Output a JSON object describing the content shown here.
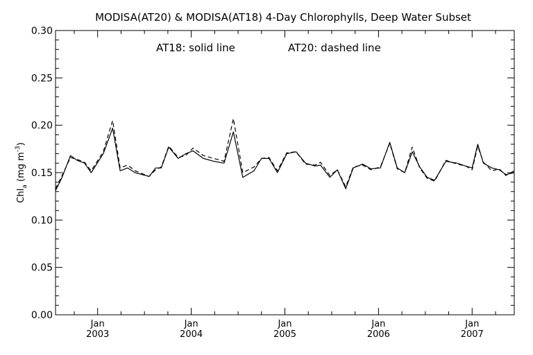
{
  "chart_data": {
    "type": "line",
    "title": "MODISA(AT20) & MODISA(AT18) 4-Day Chlorophylls, Deep Water Subset",
    "annotation": {
      "solid": "AT18: solid line",
      "dashed": "AT20: dashed line"
    },
    "ylabel": "Chl_a (mg m^-3)",
    "ylabel_parts": {
      "base": "Chl",
      "sub": "a",
      "units_open": " (mg m",
      "sup": "-3",
      "units_close": ")"
    },
    "xlabel": "",
    "ylim": [
      0.0,
      0.3
    ],
    "xlim": [
      2002.55,
      2007.45
    ],
    "yticks": [
      0.0,
      0.05,
      0.1,
      0.15,
      0.2,
      0.25,
      0.3
    ],
    "ytick_labels": [
      "0.00",
      "0.05",
      "0.10",
      "0.15",
      "0.20",
      "0.25",
      "0.30"
    ],
    "xticks": [
      {
        "x": 2003.0,
        "month": "Jan",
        "year": "2003"
      },
      {
        "x": 2004.0,
        "month": "Jan",
        "year": "2004"
      },
      {
        "x": 2005.0,
        "month": "Jan",
        "year": "2005"
      },
      {
        "x": 2006.0,
        "month": "Jan",
        "year": "2006"
      },
      {
        "x": 2007.0,
        "month": "Jan",
        "year": "2007"
      }
    ],
    "grid": false,
    "series": [
      {
        "name": "AT18",
        "style": "solid",
        "color": "#000000",
        "x": [
          2002.55,
          2002.62,
          2002.71,
          2002.78,
          2002.86,
          2002.93,
          2003.06,
          2003.16,
          2003.24,
          2003.32,
          2003.4,
          2003.55,
          2003.62,
          2003.68,
          2003.76,
          2003.86,
          2003.94,
          2004.02,
          2004.13,
          2004.24,
          2004.35,
          2004.45,
          2004.55,
          2004.67,
          2004.75,
          2004.83,
          2004.92,
          2005.02,
          2005.12,
          2005.22,
          2005.32,
          2005.38,
          2005.48,
          2005.56,
          2005.65,
          2005.73,
          2005.83,
          2005.92,
          2006.02,
          2006.12,
          2006.2,
          2006.28,
          2006.36,
          2006.44,
          2006.52,
          2006.6,
          2006.72,
          2006.84,
          2006.93,
          2007.0,
          2007.06,
          2007.12,
          2007.21,
          2007.29,
          2007.36,
          2007.45
        ],
        "y": [
          0.131,
          0.145,
          0.168,
          0.163,
          0.16,
          0.15,
          0.17,
          0.197,
          0.152,
          0.155,
          0.15,
          0.146,
          0.155,
          0.155,
          0.177,
          0.165,
          0.17,
          0.173,
          0.165,
          0.162,
          0.16,
          0.193,
          0.145,
          0.152,
          0.165,
          0.165,
          0.15,
          0.17,
          0.172,
          0.16,
          0.157,
          0.158,
          0.145,
          0.153,
          0.133,
          0.155,
          0.159,
          0.154,
          0.155,
          0.182,
          0.155,
          0.15,
          0.172,
          0.156,
          0.145,
          0.142,
          0.162,
          0.16,
          0.157,
          0.155,
          0.18,
          0.16,
          0.155,
          0.153,
          0.148,
          0.15
        ]
      },
      {
        "name": "AT20",
        "style": "dashed",
        "color": "#000000",
        "x": [
          2002.55,
          2002.62,
          2002.71,
          2002.78,
          2002.86,
          2002.93,
          2003.06,
          2003.16,
          2003.24,
          2003.32,
          2003.4,
          2003.55,
          2003.62,
          2003.68,
          2003.76,
          2003.86,
          2003.94,
          2004.02,
          2004.13,
          2004.24,
          2004.35,
          2004.45,
          2004.55,
          2004.67,
          2004.75,
          2004.83,
          2004.92,
          2005.02,
          2005.12,
          2005.22,
          2005.32,
          2005.38,
          2005.48,
          2005.56,
          2005.65,
          2005.73,
          2005.83,
          2005.92,
          2006.02,
          2006.12,
          2006.2,
          2006.28,
          2006.36,
          2006.44,
          2006.52,
          2006.6,
          2006.72,
          2006.84,
          2006.93,
          2007.0,
          2007.06,
          2007.12,
          2007.21,
          2007.29,
          2007.36,
          2007.45
        ],
        "y": [
          0.133,
          0.147,
          0.166,
          0.164,
          0.161,
          0.152,
          0.172,
          0.205,
          0.155,
          0.158,
          0.152,
          0.146,
          0.153,
          0.156,
          0.178,
          0.166,
          0.168,
          0.176,
          0.168,
          0.165,
          0.162,
          0.207,
          0.15,
          0.156,
          0.165,
          0.166,
          0.152,
          0.171,
          0.172,
          0.159,
          0.158,
          0.161,
          0.147,
          0.153,
          0.135,
          0.156,
          0.158,
          0.153,
          0.156,
          0.181,
          0.154,
          0.15,
          0.177,
          0.155,
          0.144,
          0.141,
          0.163,
          0.159,
          0.157,
          0.153,
          0.178,
          0.161,
          0.152,
          0.154,
          0.147,
          0.152
        ]
      }
    ]
  }
}
